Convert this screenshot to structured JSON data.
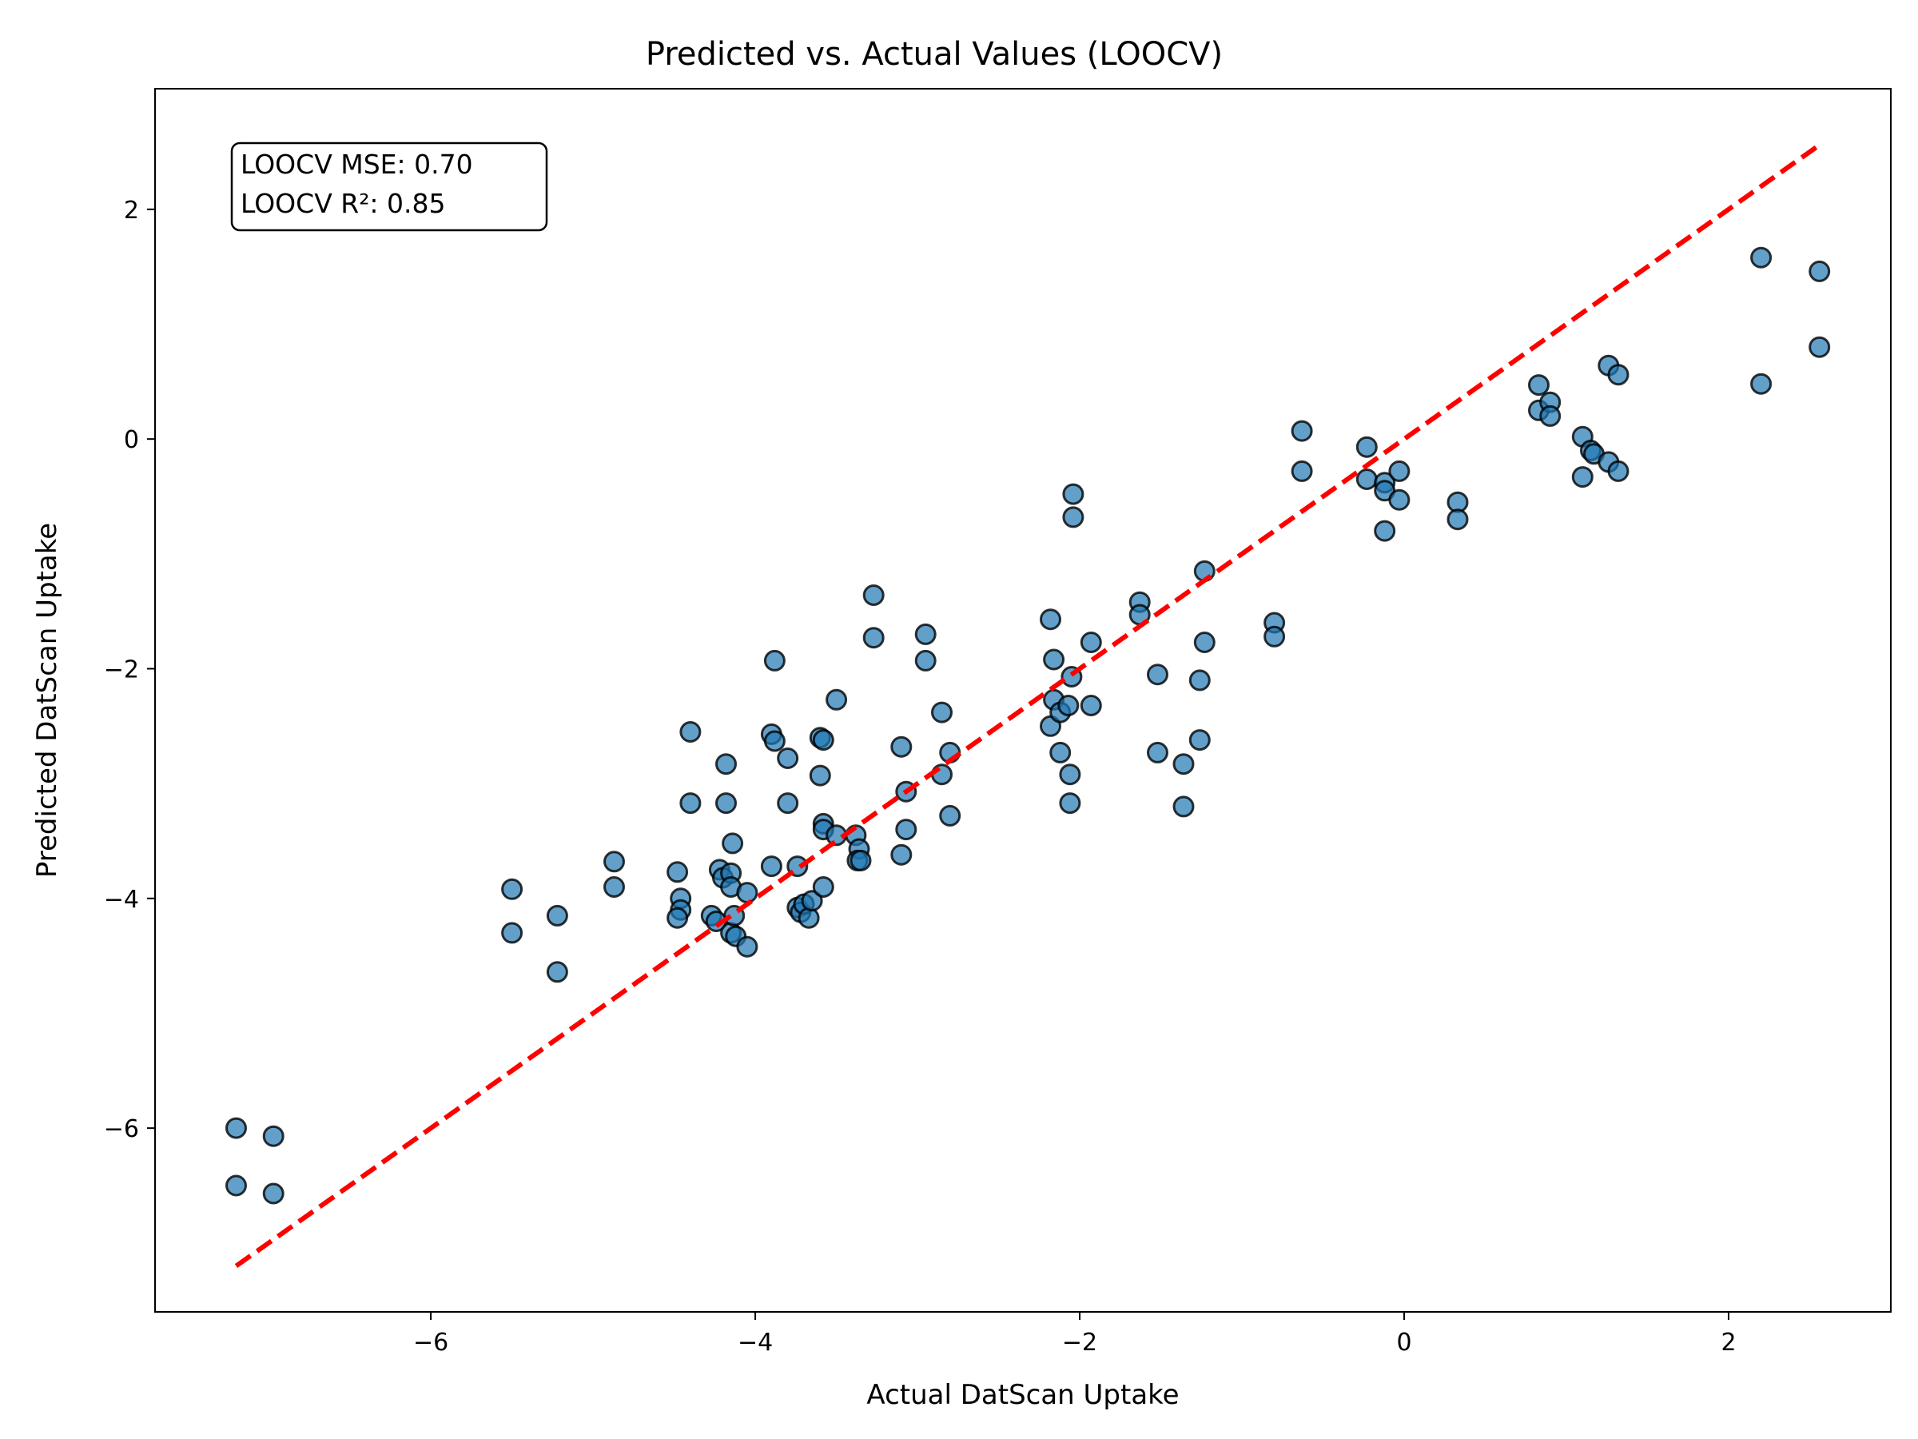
{
  "chart_data": {
    "type": "scatter",
    "title": "Predicted vs. Actual Values (LOOCV)",
    "xlabel": "Actual DatScan Uptake",
    "ylabel": "Predicted DatScan Uptake",
    "xlim": [
      -7.7,
      3.0
    ],
    "ylim": [
      -7.6,
      3.05
    ],
    "xticks": [
      -6,
      -4,
      -2,
      0,
      2
    ],
    "yticks": [
      2,
      0,
      -2,
      -4,
      -6
    ],
    "xtick_labels": [
      "−6",
      "−4",
      "−2",
      "0",
      "2"
    ],
    "ytick_labels": [
      "2",
      "0",
      "−2",
      "−4",
      "−6"
    ],
    "grid": false,
    "stats_box": {
      "position": "top-left",
      "lines": [
        "LOOCV MSE: 0.70",
        "LOOCV R²: 0.85"
      ]
    },
    "reference_line": {
      "style": "dashed",
      "color": "#ff0000",
      "from": [
        -7.2,
        -7.2
      ],
      "to": [
        2.55,
        2.55
      ]
    },
    "point_color": "#1f77b4",
    "point_edge_color": "#000000",
    "points": [
      [
        -7.2,
        -6.0
      ],
      [
        -7.2,
        -6.5
      ],
      [
        -6.97,
        -6.07
      ],
      [
        -6.97,
        -6.57
      ],
      [
        -5.5,
        -3.92
      ],
      [
        -5.5,
        -4.3
      ],
      [
        -5.22,
        -4.15
      ],
      [
        -5.22,
        -4.64
      ],
      [
        -4.87,
        -3.68
      ],
      [
        -4.87,
        -3.9
      ],
      [
        -4.48,
        -3.77
      ],
      [
        -4.46,
        -4.0
      ],
      [
        -4.46,
        -4.1
      ],
      [
        -4.48,
        -4.17
      ],
      [
        -4.4,
        -2.55
      ],
      [
        -4.4,
        -3.17
      ],
      [
        -4.27,
        -4.15
      ],
      [
        -4.24,
        -4.2
      ],
      [
        -4.22,
        -3.75
      ],
      [
        -4.2,
        -3.82
      ],
      [
        -4.18,
        -2.83
      ],
      [
        -4.18,
        -3.17
      ],
      [
        -4.15,
        -3.78
      ],
      [
        -4.15,
        -3.9
      ],
      [
        -4.14,
        -3.52
      ],
      [
        -4.15,
        -4.3
      ],
      [
        -4.13,
        -4.15
      ],
      [
        -4.12,
        -4.33
      ],
      [
        -4.05,
        -3.95
      ],
      [
        -4.05,
        -4.42
      ],
      [
        -3.9,
        -2.57
      ],
      [
        -3.88,
        -2.63
      ],
      [
        -3.88,
        -1.93
      ],
      [
        -3.9,
        -3.72
      ],
      [
        -3.8,
        -2.78
      ],
      [
        -3.8,
        -3.17
      ],
      [
        -3.74,
        -3.72
      ],
      [
        -3.74,
        -4.08
      ],
      [
        -3.72,
        -4.12
      ],
      [
        -3.7,
        -4.05
      ],
      [
        -3.67,
        -4.17
      ],
      [
        -3.65,
        -4.02
      ],
      [
        -3.6,
        -2.6
      ],
      [
        -3.6,
        -2.93
      ],
      [
        -3.58,
        -2.62
      ],
      [
        -3.58,
        -3.35
      ],
      [
        -3.58,
        -3.4
      ],
      [
        -3.58,
        -3.9
      ],
      [
        -3.5,
        -2.27
      ],
      [
        -3.5,
        -3.45
      ],
      [
        -3.38,
        -3.45
      ],
      [
        -3.36,
        -3.57
      ],
      [
        -3.37,
        -3.67
      ],
      [
        -3.35,
        -3.67
      ],
      [
        -3.27,
        -1.36
      ],
      [
        -3.27,
        -1.73
      ],
      [
        -3.1,
        -2.68
      ],
      [
        -3.1,
        -3.62
      ],
      [
        -3.07,
        -3.07
      ],
      [
        -3.07,
        -3.4
      ],
      [
        -2.95,
        -1.7
      ],
      [
        -2.95,
        -1.93
      ],
      [
        -2.85,
        -2.38
      ],
      [
        -2.85,
        -2.92
      ],
      [
        -2.8,
        -2.73
      ],
      [
        -2.8,
        -3.28
      ],
      [
        -2.18,
        -1.57
      ],
      [
        -2.16,
        -1.92
      ],
      [
        -2.16,
        -2.27
      ],
      [
        -2.18,
        -2.5
      ],
      [
        -2.12,
        -2.38
      ],
      [
        -2.12,
        -2.73
      ],
      [
        -2.07,
        -2.32
      ],
      [
        -2.05,
        -2.07
      ],
      [
        -2.06,
        -2.92
      ],
      [
        -2.06,
        -3.17
      ],
      [
        -2.04,
        -0.48
      ],
      [
        -2.04,
        -0.68
      ],
      [
        -1.93,
        -1.77
      ],
      [
        -1.93,
        -2.32
      ],
      [
        -1.63,
        -1.42
      ],
      [
        -1.63,
        -1.53
      ],
      [
        -1.52,
        -2.05
      ],
      [
        -1.52,
        -2.73
      ],
      [
        -1.36,
        -2.83
      ],
      [
        -1.36,
        -3.2
      ],
      [
        -1.26,
        -2.1
      ],
      [
        -1.26,
        -2.62
      ],
      [
        -1.23,
        -1.77
      ],
      [
        -1.23,
        -1.15
      ],
      [
        -0.8,
        -1.6
      ],
      [
        -0.8,
        -1.72
      ],
      [
        -0.63,
        0.07
      ],
      [
        -0.63,
        -0.28
      ],
      [
        -0.23,
        -0.07
      ],
      [
        -0.23,
        -0.35
      ],
      [
        -0.12,
        -0.38
      ],
      [
        -0.12,
        -0.45
      ],
      [
        -0.12,
        -0.8
      ],
      [
        -0.03,
        -0.28
      ],
      [
        -0.03,
        -0.53
      ],
      [
        0.33,
        -0.55
      ],
      [
        0.33,
        -0.7
      ],
      [
        0.83,
        0.47
      ],
      [
        0.83,
        0.25
      ],
      [
        0.9,
        0.32
      ],
      [
        0.9,
        0.2
      ],
      [
        1.1,
        0.02
      ],
      [
        1.1,
        -0.33
      ],
      [
        1.15,
        -0.1
      ],
      [
        1.17,
        -0.13
      ],
      [
        1.26,
        0.64
      ],
      [
        1.26,
        -0.2
      ],
      [
        1.32,
        0.56
      ],
      [
        1.32,
        -0.28
      ],
      [
        2.2,
        1.58
      ],
      [
        2.2,
        0.48
      ],
      [
        2.56,
        1.46
      ],
      [
        2.56,
        0.8
      ]
    ]
  }
}
